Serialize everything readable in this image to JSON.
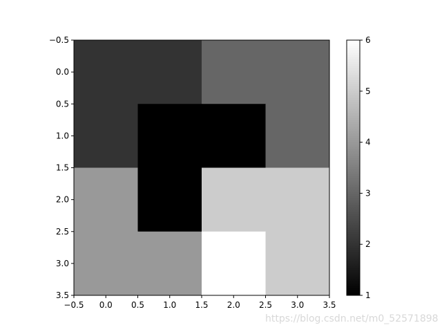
{
  "chart_data": {
    "type": "heatmap",
    "colormap": "gray",
    "z": [
      [
        2,
        2,
        3,
        3
      ],
      [
        2,
        1,
        1,
        3
      ],
      [
        4,
        1,
        5,
        5
      ],
      [
        4,
        4,
        6,
        5
      ]
    ],
    "x_ticks": [
      "−0.5",
      "0.0",
      "0.5",
      "1.0",
      "1.5",
      "2.0",
      "2.5",
      "3.0",
      "3.5"
    ],
    "y_ticks": [
      "−0.5",
      "0.0",
      "0.5",
      "1.0",
      "1.5",
      "2.0",
      "2.5",
      "3.0",
      "3.5"
    ],
    "xlim": [
      -0.5,
      3.5
    ],
    "ylim": [
      3.5,
      -0.5
    ],
    "colorbar": {
      "range": [
        1,
        6
      ],
      "ticks": [
        "1",
        "2",
        "3",
        "4",
        "5",
        "6"
      ]
    }
  },
  "watermark": "https://blog.csdn.net/m0_52571898"
}
